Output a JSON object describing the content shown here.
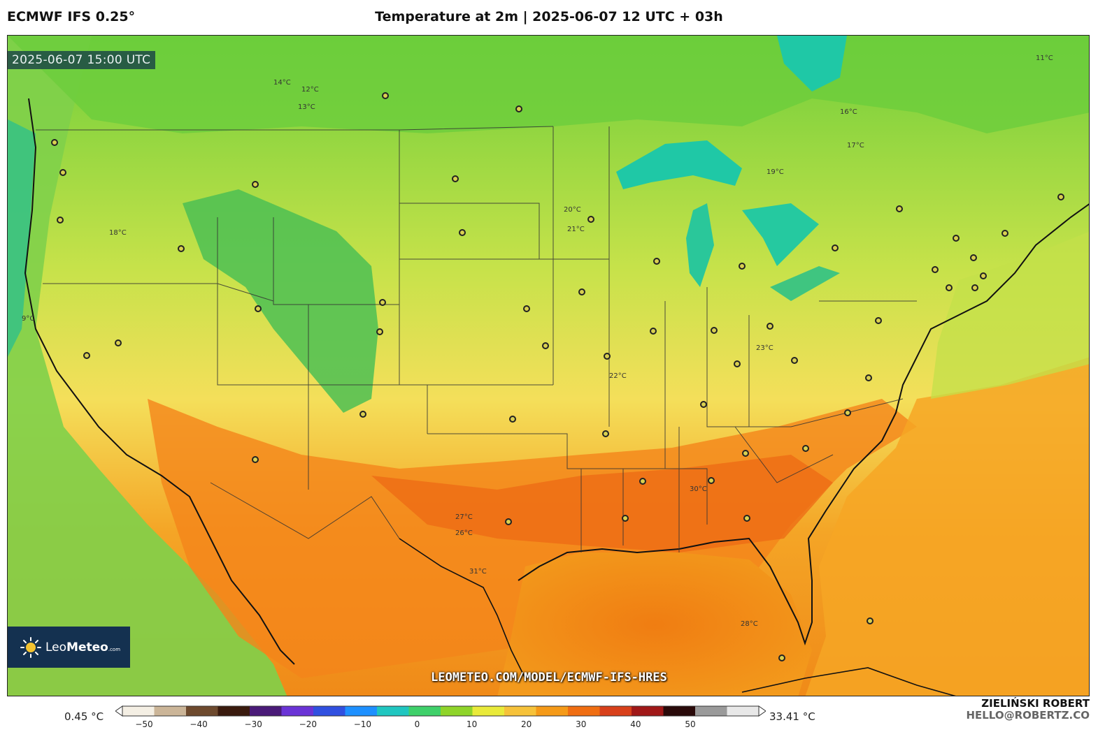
{
  "header": {
    "model": "ECMWF IFS 0.25°",
    "title": "Temperature at 2m | 2025-06-07 12 UTC + 03h"
  },
  "map": {
    "valid_time": "2025-06-07 15:00 UTC",
    "isotherm_labels": [
      "12°C",
      "13°C",
      "14°C",
      "16°C",
      "17°C",
      "18°C",
      "19°C",
      "20°C",
      "21°C",
      "22°C",
      "23°C",
      "26°C",
      "27°C",
      "28°C",
      "30°C",
      "31°C",
      "11°C",
      "9°C"
    ],
    "url": "LEOMETEO.COM/MODEL/ECMWF-IFS-HRES"
  },
  "logo": {
    "name_light": "Leo",
    "name_bold": "Meteo",
    "suffix": ".com"
  },
  "colorbar": {
    "min_label": "0.45 °C",
    "max_label": "33.41 °C",
    "ticks": [
      "−50",
      "−40",
      "−30",
      "−20",
      "−10",
      "0",
      "10",
      "20",
      "30",
      "40",
      "50"
    ],
    "colors": [
      "#f4efe4",
      "#cbb598",
      "#6e4a2e",
      "#3a1b0e",
      "#4a1a78",
      "#6a33d6",
      "#3050e0",
      "#1e90ff",
      "#20c6c0",
      "#3fd06a",
      "#8fd42a",
      "#e9ea3a",
      "#f6c23a",
      "#f59a18",
      "#f06e12",
      "#d8401a",
      "#a01818",
      "#2a0a0a",
      "#9a9a9a",
      "#e8e8e8"
    ]
  },
  "footer": {
    "author": "ZIELIŃSKI ROBERT",
    "email": "HELLO@ROBERTZ.CO"
  },
  "palette": {
    "cold_water": "#1fc8a6",
    "cool": "#4cc050",
    "mild": "#b6df3e",
    "warm_yellow": "#f2e96a",
    "orange": "#f59a18",
    "hot": "#ef6a12",
    "ocean_warm": "#f5a522"
  }
}
